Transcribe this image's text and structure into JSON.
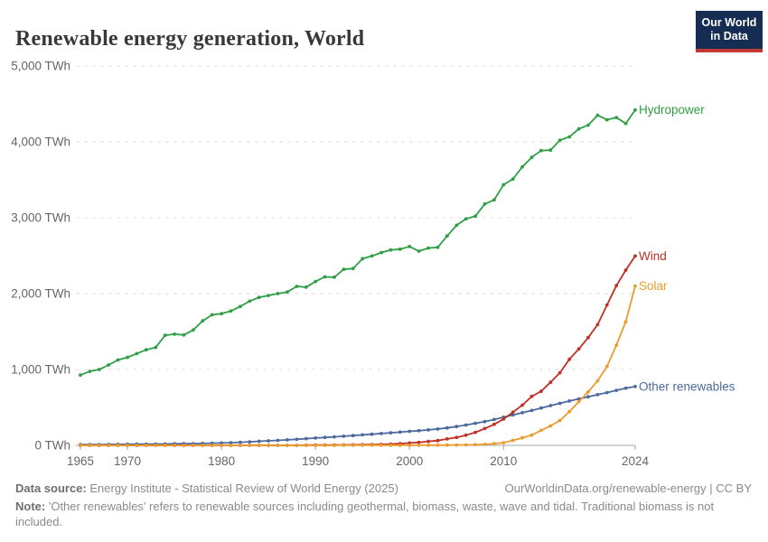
{
  "header": {
    "title": "Renewable energy generation, World",
    "logo": {
      "line1": "Our World",
      "line2": "in Data"
    }
  },
  "chart_data": {
    "type": "line",
    "title": "Renewable energy generation, World",
    "unit": "TWh",
    "xlabel": "",
    "ylabel": "TWh",
    "ylim": [
      0,
      5000
    ],
    "xlim": [
      1965,
      2024
    ],
    "grid": "horizontal-dashed",
    "legend_position": "end-of-line-labels",
    "yticks": [
      0,
      1000,
      2000,
      3000,
      4000,
      5000
    ],
    "xticks": [
      1965,
      1970,
      1980,
      1990,
      2000,
      2010,
      2024
    ],
    "x": [
      1965,
      1966,
      1967,
      1968,
      1969,
      1970,
      1971,
      1972,
      1973,
      1974,
      1975,
      1976,
      1977,
      1978,
      1979,
      1980,
      1981,
      1982,
      1983,
      1984,
      1985,
      1986,
      1987,
      1988,
      1989,
      1990,
      1991,
      1992,
      1993,
      1994,
      1995,
      1996,
      1997,
      1998,
      1999,
      2000,
      2001,
      2002,
      2003,
      2004,
      2005,
      2006,
      2007,
      2008,
      2009,
      2010,
      2011,
      2012,
      2013,
      2014,
      2015,
      2016,
      2017,
      2018,
      2019,
      2020,
      2021,
      2022,
      2023,
      2024
    ],
    "series": [
      {
        "name": "Hydropower",
        "color": "#2F9E44",
        "values": [
          926,
          975,
          1000,
          1060,
          1125,
          1160,
          1210,
          1260,
          1290,
          1450,
          1465,
          1455,
          1520,
          1640,
          1720,
          1735,
          1770,
          1830,
          1900,
          1950,
          1975,
          2000,
          2020,
          2095,
          2085,
          2160,
          2220,
          2215,
          2320,
          2330,
          2460,
          2495,
          2540,
          2575,
          2585,
          2620,
          2560,
          2600,
          2610,
          2760,
          2900,
          2985,
          3020,
          3180,
          3235,
          3435,
          3510,
          3670,
          3795,
          3885,
          3890,
          4020,
          4065,
          4170,
          4220,
          4350,
          4290,
          4320,
          4240,
          4420
        ]
      },
      {
        "name": "Wind",
        "color": "#BF3026",
        "values": [
          0,
          0,
          0,
          0,
          0,
          0,
          0,
          0,
          0,
          0,
          0,
          0,
          0,
          0,
          0,
          0,
          0,
          0,
          0,
          0,
          0.1,
          0.2,
          0.3,
          0.5,
          2,
          3.9,
          4.1,
          4.7,
          5.8,
          7.2,
          8.3,
          9.4,
          12,
          16,
          21,
          31,
          38,
          52,
          63,
          85,
          104,
          133,
          171,
          221,
          276,
          346,
          437,
          530,
          645,
          712,
          831,
          957,
          1135,
          1270,
          1420,
          1590,
          1850,
          2105,
          2310,
          2495
        ]
      },
      {
        "name": "Solar",
        "color": "#EB9C2D",
        "values": [
          0,
          0,
          0,
          0,
          0,
          0,
          0,
          0,
          0,
          0,
          0,
          0,
          0,
          0,
          0,
          0,
          0,
          0,
          0,
          0,
          0,
          0,
          0,
          0,
          0,
          0.4,
          0.5,
          0.5,
          0.6,
          0.6,
          0.7,
          0.7,
          0.8,
          0.9,
          1,
          1.1,
          1.4,
          1.8,
          2.3,
          3.3,
          4.5,
          6.3,
          8.8,
          13,
          21,
          34,
          65,
          99,
          134,
          198,
          256,
          329,
          445,
          575,
          705,
          850,
          1040,
          1320,
          1630,
          2100
        ]
      },
      {
        "name": "Other renewables",
        "color": "#4C6A9C",
        "values": [
          10,
          11,
          11,
          12,
          13,
          14,
          15,
          16,
          17,
          18,
          20,
          21,
          23,
          25,
          28,
          31,
          35,
          40,
          46,
          53,
          60,
          66,
          73,
          80,
          88,
          96,
          104,
          112,
          120,
          129,
          138,
          147,
          156,
          165,
          174,
          184,
          193,
          203,
          215,
          230,
          248,
          268,
          290,
          313,
          340,
          370,
          400,
          430,
          460,
          492,
          524,
          554,
          584,
          612,
          640,
          668,
          695,
          725,
          752,
          775
        ]
      }
    ]
  },
  "footer": {
    "data_source_label": "Data source:",
    "data_source": "Energy Institute - Statistical Review of World Energy (2025)",
    "link": "OurWorldinData.org/renewable-energy | CC BY",
    "note_label": "Note:",
    "note": "'Other renewables' refers to renewable sources including geothermal, biomass, waste, wave and tidal. Traditional biomass is not included."
  }
}
